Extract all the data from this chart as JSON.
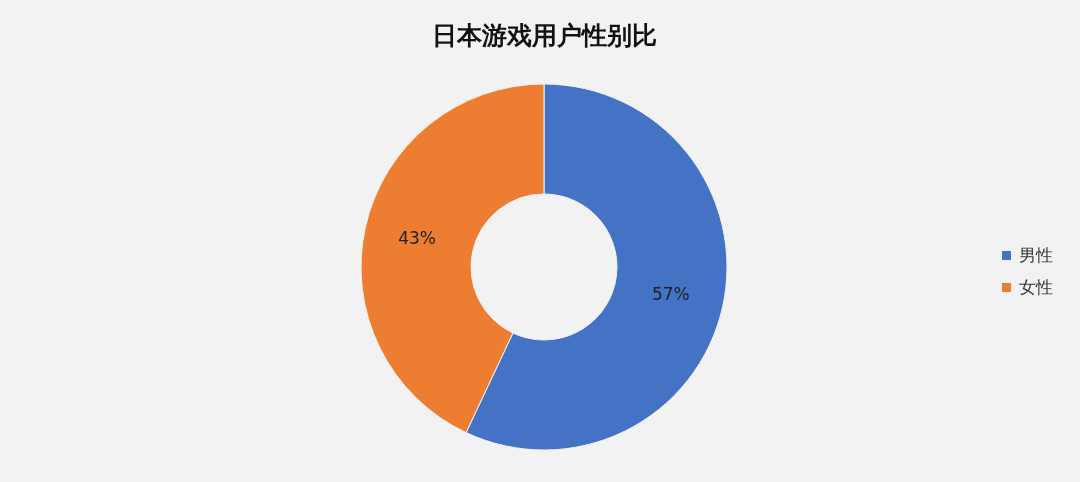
{
  "chart_data": {
    "type": "donut",
    "title": "日本游戏用户性别比",
    "categories": [
      "男性",
      "女性"
    ],
    "values": [
      57,
      43
    ],
    "colors": [
      "#4472c4",
      "#ed7d31"
    ],
    "value_labels": [
      "57%",
      "43%"
    ],
    "legend": "right"
  }
}
